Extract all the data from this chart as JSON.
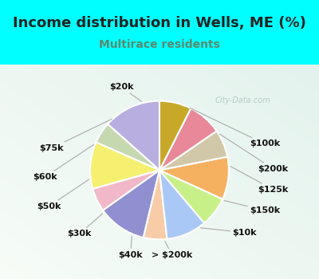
{
  "title": "Income distribution in Wells, ME (%)",
  "subtitle": "Multirace residents",
  "bg_color": "#00FFFF",
  "chart_bg_top": "#f0faf8",
  "chart_bg_bottom": "#d8f0e0",
  "labels": [
    "$100k",
    "$200k",
    "$125k",
    "$150k",
    "$10k",
    "> $200k",
    "$40k",
    "$30k",
    "$50k",
    "$60k",
    "$75k",
    "$20k"
  ],
  "sizes": [
    13.5,
    5.0,
    11.0,
    5.5,
    11.5,
    5.5,
    9.5,
    7.0,
    10.0,
    6.5,
    8.0,
    7.5
  ],
  "colors": [
    "#b8aee0",
    "#c5d8b0",
    "#f5f070",
    "#f0b8c8",
    "#9090d0",
    "#f8cca8",
    "#aac8f5",
    "#c8f088",
    "#f5b060",
    "#d0c8a8",
    "#e88898",
    "#c8a828"
  ],
  "watermark": "City-Data.com",
  "title_fontsize": 13,
  "subtitle_fontsize": 10,
  "label_fontsize": 8
}
